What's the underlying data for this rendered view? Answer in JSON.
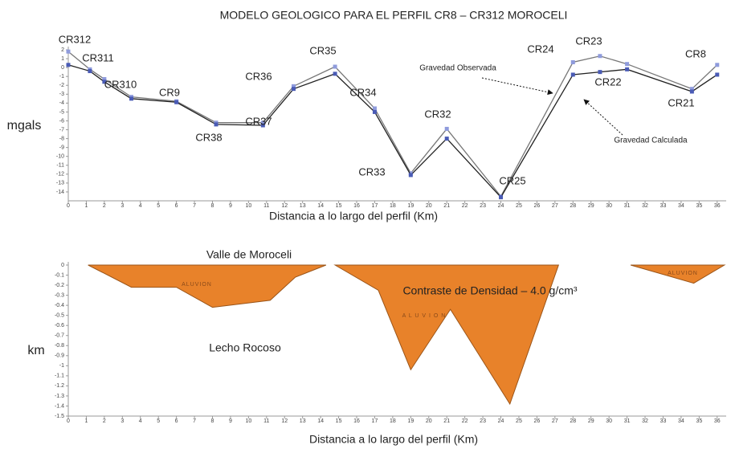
{
  "charts": [
    {
      "type": "line",
      "title": "MODELO GEOLOGICO PARA EL PERFIL CR8 – CR312  MOROCELI",
      "y_label": "mgals",
      "x_label": "Distancia a lo largo del perfil (Km)",
      "x": [
        0,
        1.2,
        2,
        3.5,
        6,
        8.2,
        10.8,
        12.5,
        14.8,
        17,
        19,
        21,
        24,
        28,
        29.5,
        31,
        34.6,
        36
      ],
      "series": [
        {
          "name": "Gravedad Observada",
          "color": "#8f9bdc",
          "line_color": "#777777",
          "values": [
            1.8,
            -0.2,
            -1.3,
            -3.3,
            -3.8,
            -6.2,
            -6.2,
            -2.1,
            0.1,
            -4.6,
            -11.9,
            -6.9,
            -14.5,
            0.6,
            1.3,
            0.4,
            -2.4,
            0.3
          ]
        },
        {
          "name": "Gravedad Calculada",
          "color": "#4a5bb5",
          "line_color": "#222222",
          "values": [
            0.3,
            -0.4,
            -1.6,
            -3.5,
            -3.9,
            -6.4,
            -6.5,
            -2.4,
            -0.7,
            -5.0,
            -12.1,
            -8.0,
            -14.6,
            -0.8,
            -0.5,
            -0.2,
            -2.7,
            -0.8
          ]
        }
      ],
      "point_labels": [
        "CR312",
        "CR311",
        "CR310",
        "CR9",
        "CR38",
        "CR37",
        "CR36",
        "CR35",
        "CR34",
        "CR33",
        "CR32",
        "CR25",
        "CR24",
        "CR23",
        "CR22",
        "CR21",
        "CR8"
      ],
      "xlim": [
        0,
        36.5
      ],
      "xticks": [
        0,
        1,
        2,
        3,
        4,
        5,
        6,
        7,
        8,
        9,
        10,
        11,
        12,
        13,
        14,
        15,
        16,
        17,
        18,
        19,
        20,
        21,
        22,
        23,
        24,
        25,
        26,
        27,
        28,
        29,
        30,
        31,
        32,
        33,
        34,
        35,
        36
      ],
      "ylim": [
        -15,
        2
      ],
      "yticks": [
        2,
        1,
        0,
        -1,
        -2,
        -3,
        -4,
        -5,
        -6,
        -7,
        -8,
        -9,
        -10,
        -11,
        -12,
        -13,
        -14
      ]
    },
    {
      "type": "polygon",
      "y_label": "km",
      "x_label": "Distancia a lo largo del perfil (Km)",
      "color": "#e8822a",
      "shapes": [
        {
          "x": [
            1.1,
            3.5,
            6,
            8,
            11.2,
            12.6,
            14.3
          ],
          "values": [
            0,
            -0.22,
            -0.22,
            -0.42,
            -0.35,
            -0.12,
            0
          ]
        },
        {
          "x": [
            14.8,
            17.2,
            19,
            21.2,
            24.5,
            27.2
          ],
          "values": [
            0,
            -0.25,
            -1.04,
            -0.44,
            -1.38,
            0
          ]
        },
        {
          "x": [
            31.2,
            34.7,
            36.4
          ],
          "values": [
            0,
            -0.18,
            0
          ]
        }
      ],
      "annotations": [
        "Valle de Moroceli",
        "ALUVION",
        "A L U V I O N",
        "ALUVION",
        "Contraste de Densidad – 4.0 g/cm³",
        "Lecho Rocoso"
      ],
      "xlim": [
        0,
        36.5
      ],
      "xticks": [
        0,
        1,
        2,
        3,
        4,
        5,
        6,
        7,
        8,
        9,
        10,
        11,
        12,
        13,
        14,
        15,
        16,
        17,
        18,
        19,
        20,
        21,
        22,
        23,
        24,
        25,
        26,
        27,
        28,
        29,
        30,
        31,
        32,
        33,
        34,
        35,
        36
      ],
      "ylim": [
        -1.5,
        0
      ],
      "yticks": [
        0,
        -0.1,
        -0.2,
        -0.3,
        -0.4,
        -0.5,
        -0.6,
        -0.7,
        -0.8,
        -0.9,
        -1,
        -1.1,
        -1.2,
        -1.3,
        -1.4,
        -1.5
      ]
    }
  ]
}
